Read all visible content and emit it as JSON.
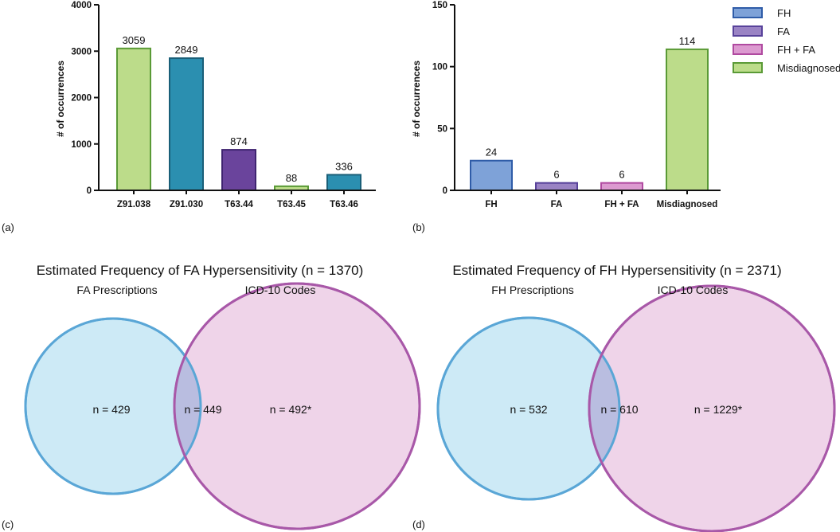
{
  "chart_data": [
    {
      "panel": "(a)",
      "type": "bar",
      "title": "",
      "xlabel": "",
      "ylabel": "# of occurrences",
      "ylim": [
        0,
        4000
      ],
      "yticks": [
        0,
        1000,
        2000,
        3000,
        4000
      ],
      "categories": [
        "Z91.038",
        "Z91.030",
        "T63.44",
        "T63.45",
        "T63.46"
      ],
      "values": [
        3059,
        2849,
        874,
        88,
        336
      ],
      "bar_colors": [
        "#bcdc8a",
        "#2b8fb0",
        "#6a449c",
        "#bcdc8a",
        "#2b8fb0"
      ],
      "edge_colors": [
        "#5a9a36",
        "#1a5f78",
        "#3f2470",
        "#5a9a36",
        "#1a5f78"
      ]
    },
    {
      "panel": "(b)",
      "type": "bar",
      "title": "",
      "xlabel": "",
      "ylabel": "# of occurrences",
      "ylim": [
        0,
        150
      ],
      "yticks": [
        0,
        50,
        100,
        150
      ],
      "categories": [
        "FH",
        "FA",
        "FH + FA",
        "Misdiagnosed"
      ],
      "values": [
        24,
        6,
        6,
        114
      ],
      "bar_colors": [
        "#7ea2d8",
        "#9a83c4",
        "#dc9ad0",
        "#bcdc8a"
      ],
      "edge_colors": [
        "#2f5ca8",
        "#58429a",
        "#b04aa0",
        "#5a9a36"
      ],
      "legend": [
        "FH",
        "FA",
        "FH + FA",
        "Misdiagnosed"
      ],
      "legend_placement": "top-right"
    },
    {
      "panel": "(c)",
      "type": "venn",
      "title": "Estimated Frequency of FA Hypersensitivity (n = 1370)",
      "sets": [
        "FA Prescriptions",
        "ICD-10 Codes"
      ],
      "counts": {
        "left_only": "n = 429",
        "both": "n = 449",
        "right_only": "n = 492*"
      },
      "values": {
        "left_only": 429,
        "both": 449,
        "right_only": 492
      }
    },
    {
      "panel": "(d)",
      "type": "venn",
      "title": "Estimated Frequency of FH Hypersensitivity (n = 2371)",
      "sets": [
        "FH Prescriptions",
        "ICD-10 Codes"
      ],
      "counts": {
        "left_only": "n = 532",
        "both": "n = 610",
        "right_only": "n = 1229*"
      },
      "values": {
        "left_only": 532,
        "both": 610,
        "right_only": 1229
      }
    }
  ],
  "colors": {
    "venn_left_fill": "#cdeaf6",
    "venn_left_stroke": "#62b3e0",
    "venn_right_fill": "#efd4e9",
    "venn_right_stroke": "#b360b0",
    "venn_overlap_fill": "#b9bde0",
    "axis": "#111111"
  }
}
